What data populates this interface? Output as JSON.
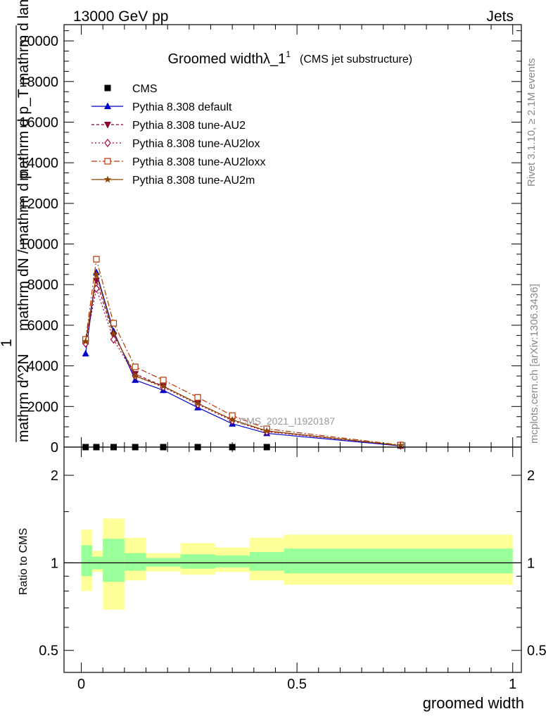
{
  "header": {
    "left": "13000 GeV pp",
    "right": "Jets"
  },
  "side_labels": {
    "rivet": "Rivet 3.1.10, ≥ 2.1M events",
    "mcplots": "mcplots.cern.ch [arXiv:1306.3436]"
  },
  "watermark": "CMS_2021_I1920187",
  "chart_data": [
    {
      "type": "line",
      "title": "Groomed widthλ_1",
      "title_superscript": "1",
      "subtitle": "(CMS jet substructure)",
      "xlabel": "groomed width",
      "ylabel_lines": [
        "1",
        "mathrm dN / mathrm d p",
        "mathrm d^2N",
        "mathrm d p_T mathrm d lambda"
      ],
      "xlim": [
        -0.04,
        1.02
      ],
      "ylim": [
        0,
        20800
      ],
      "yticks": [
        0,
        2000,
        4000,
        6000,
        8000,
        10000,
        12000,
        14000,
        16000,
        18000,
        20000
      ],
      "ytick_labels": [
        "0",
        "2000",
        "4000",
        "6000",
        "8000",
        "10000",
        "12000",
        "14000",
        "16000",
        "18000",
        "20000"
      ],
      "grid": false,
      "legend_placement": "top-left",
      "series": [
        {
          "name": "CMS",
          "marker": "square",
          "color": "#000000",
          "x": [
            0.01,
            0.035,
            0.075,
            0.125,
            0.19,
            0.27,
            0.35,
            0.43
          ],
          "y": [
            0,
            0,
            0,
            0,
            0,
            0,
            0,
            0
          ]
        },
        {
          "name": "Pythia 8.308 default",
          "marker": "triangle-up",
          "dash": "solid",
          "color": "#0000cc",
          "x": [
            0.01,
            0.035,
            0.075,
            0.125,
            0.19,
            0.27,
            0.35,
            0.43,
            0.74
          ],
          "y": [
            4600,
            8600,
            5700,
            3300,
            2800,
            1950,
            1150,
            680,
            60
          ]
        },
        {
          "name": "Pythia 8.308 tune-AU2",
          "marker": "triangle-down",
          "dash": "4,3",
          "color": "#8b0036",
          "x": [
            0.01,
            0.035,
            0.075,
            0.125,
            0.19,
            0.27,
            0.35,
            0.43,
            0.74
          ],
          "y": [
            5200,
            8200,
            5500,
            3600,
            3000,
            2150,
            1350,
            780,
            80
          ]
        },
        {
          "name": "Pythia 8.308 tune-AU2lox",
          "marker": "diamond-open",
          "dash": "2,3",
          "color": "#a0003a",
          "x": [
            0.01,
            0.035,
            0.075,
            0.125,
            0.19,
            0.27,
            0.35,
            0.43,
            0.74
          ],
          "y": [
            5100,
            7800,
            5300,
            3500,
            2950,
            2100,
            1300,
            760,
            75
          ]
        },
        {
          "name": "Pythia 8.308 tune-AU2loxx",
          "marker": "square-open",
          "dash": "8,3,2,3",
          "color": "#bb3300",
          "x": [
            0.01,
            0.035,
            0.075,
            0.125,
            0.19,
            0.27,
            0.35,
            0.43,
            0.74
          ],
          "y": [
            5300,
            9250,
            6100,
            3950,
            3300,
            2450,
            1550,
            900,
            100
          ]
        },
        {
          "name": "Pythia 8.308 tune-AU2m",
          "marker": "star",
          "dash": "solid",
          "color": "#8b4500",
          "x": [
            0.01,
            0.035,
            0.075,
            0.125,
            0.19,
            0.27,
            0.35,
            0.43,
            0.74
          ],
          "y": [
            5200,
            8500,
            5600,
            3500,
            3000,
            2150,
            1350,
            800,
            80
          ]
        }
      ]
    },
    {
      "type": "area",
      "ylabel": "Ratio to CMS",
      "xlabel": "groomed width",
      "xlim": [
        -0.04,
        1.02
      ],
      "ylim": [
        0.42,
        2.5
      ],
      "ytick_labels": [
        "0.5",
        "1",
        "2"
      ],
      "xtick_labels": [
        "0",
        "0.5",
        "1"
      ],
      "log_y": true,
      "reference_line": 1,
      "bands": {
        "bin_edges": [
          0.0,
          0.025,
          0.05,
          0.1,
          0.15,
          0.23,
          0.31,
          0.39,
          0.47,
          1.0
        ],
        "inner_color": "#99ff99",
        "outer_color": "#ffff99",
        "inner_low": [
          0.9,
          0.95,
          0.86,
          0.94,
          0.97,
          0.955,
          0.965,
          0.94,
          0.92
        ],
        "inner_high": [
          1.15,
          1.05,
          1.21,
          1.08,
          1.04,
          1.07,
          1.06,
          1.09,
          1.12
        ],
        "outer_low": [
          0.8,
          0.93,
          0.69,
          0.87,
          0.935,
          0.91,
          0.93,
          0.87,
          0.84
        ],
        "outer_high": [
          1.3,
          1.1,
          1.42,
          1.22,
          1.08,
          1.17,
          1.13,
          1.22,
          1.25
        ]
      }
    }
  ]
}
